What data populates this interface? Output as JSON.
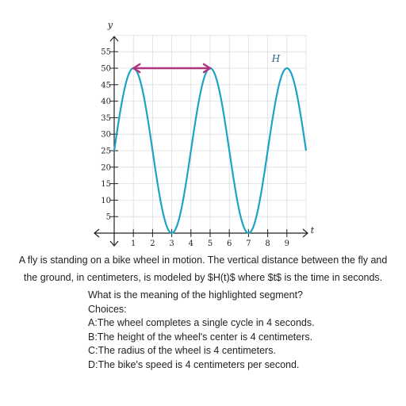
{
  "chart_data": {
    "type": "line",
    "xlabel": "t",
    "ylabel": "y",
    "curve_label": "H",
    "xlim": [
      0,
      10
    ],
    "ylim": [
      0,
      60
    ],
    "x_ticks": [
      1,
      2,
      3,
      4,
      5,
      6,
      7,
      8,
      9
    ],
    "y_ticks": [
      5,
      10,
      15,
      20,
      25,
      30,
      35,
      40,
      45,
      50,
      55
    ],
    "grid": true,
    "function": {
      "form": "sinusoid",
      "midline": 25,
      "amplitude": 25,
      "period": 4,
      "t_start": 0,
      "t_end": 10,
      "initial_value": 25,
      "increasing_at_start": true
    },
    "highlighted_segment": {
      "from": [
        1,
        50
      ],
      "to": [
        5,
        50
      ],
      "double_arrow": true
    },
    "colors": {
      "curve": "#1fa3c4",
      "highlight": "#b0347d",
      "grid": "#dddddd",
      "axis": "#222222"
    }
  },
  "question": {
    "line1": "A fly is standing on a bike wheel in motion. The vertical distance between the fly and",
    "line2": "the ground, in centimeters, is modeled by $H(t)$ where $t$ is the time in seconds.",
    "prompt": "What is the meaning of the highlighted segment?",
    "choices_label": "Choices:",
    "choices": [
      "A:The wheel completes a single cycle in 4 seconds.",
      "B:The height of the wheel's center is 4 centimeters.",
      "C:The radius of the wheel is 4 centimeters.",
      "D:The bike's speed is 4 centimeters per second."
    ]
  }
}
